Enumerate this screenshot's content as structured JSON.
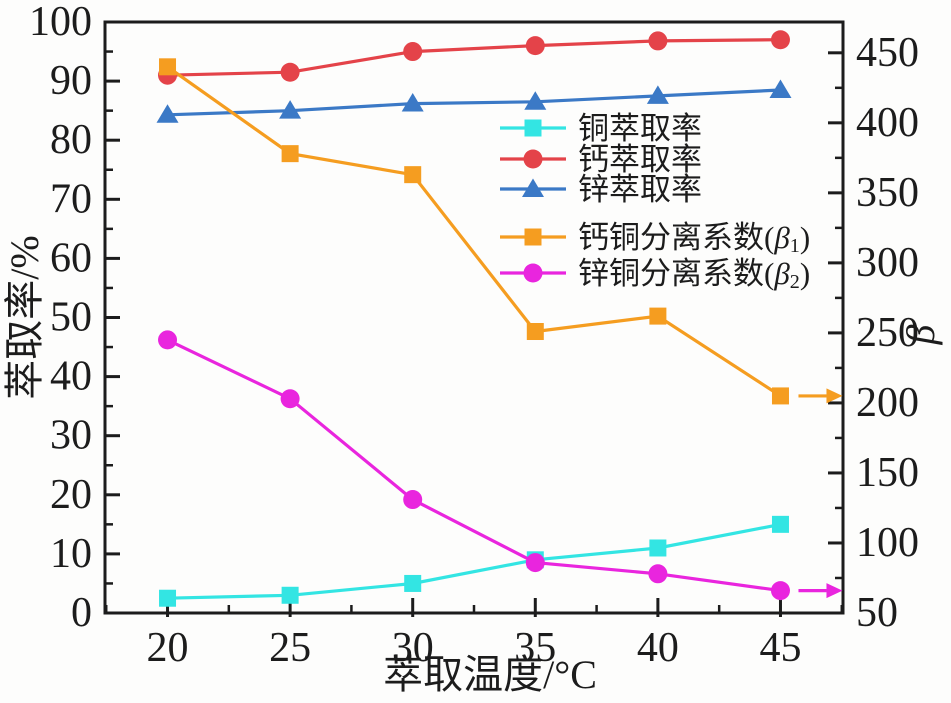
{
  "figure": {
    "background": "#fdfdfc",
    "axis_color": "#1c1c1c"
  },
  "chart_data": {
    "type": "line",
    "title": "",
    "xlabel": "萃取温度/°C",
    "ylabel_left": "萃取率/%",
    "ylabel_right": "β",
    "grid": false,
    "legend_position": "inside upper right",
    "x": [
      20,
      25,
      30,
      35,
      40,
      45
    ],
    "x_range": [
      17.45,
      47.55
    ],
    "x_major_ticks": [
      20,
      25,
      30,
      35,
      40,
      45
    ],
    "x_minor_ticks": [
      17.5,
      22.5,
      27.5,
      32.5,
      37.5,
      42.5,
      47.5
    ],
    "left_axis": {
      "min": 0,
      "max": 100,
      "major_step": 10,
      "minor_step": 5
    },
    "right_axis": {
      "min": 50,
      "max": 472,
      "label_min": 50,
      "label_max": 450,
      "major_step": 50,
      "minor_step": 25
    },
    "series": [
      {
        "key": "copper-extraction-rate",
        "name": "铜萃取率",
        "axis": "left",
        "marker": "square",
        "color": "#33e5e3",
        "values": [
          2.5,
          3,
          5,
          9,
          11,
          15
        ]
      },
      {
        "key": "calcium-extraction-rate",
        "name": "钙萃取率",
        "axis": "left",
        "marker": "circle",
        "color": "#e44349",
        "values": [
          91,
          91.5,
          95,
          96,
          96.8,
          97
        ]
      },
      {
        "key": "zinc-extraction-rate",
        "name": "锌萃取率",
        "axis": "left",
        "marker": "triangle",
        "color": "#3b79c6",
        "values": [
          84.3,
          85,
          86.2,
          86.5,
          87.5,
          88.5
        ]
      },
      {
        "key": "calcium-copper-separation-beta1",
        "name": "钙铜分离系数(β₁)",
        "axis": "right",
        "marker": "square",
        "color": "#f59d20",
        "values": [
          440,
          378,
          363,
          251,
          262,
          205
        ],
        "end_arrow": true
      },
      {
        "key": "zinc-copper-separation-beta2",
        "name": "锌铜分离系数(β₂)",
        "axis": "right",
        "marker": "circle",
        "color": "#e925de",
        "values": [
          245,
          203,
          131,
          86,
          78,
          66
        ],
        "end_arrow": true
      }
    ],
    "legend_gap_after_item": 2
  }
}
